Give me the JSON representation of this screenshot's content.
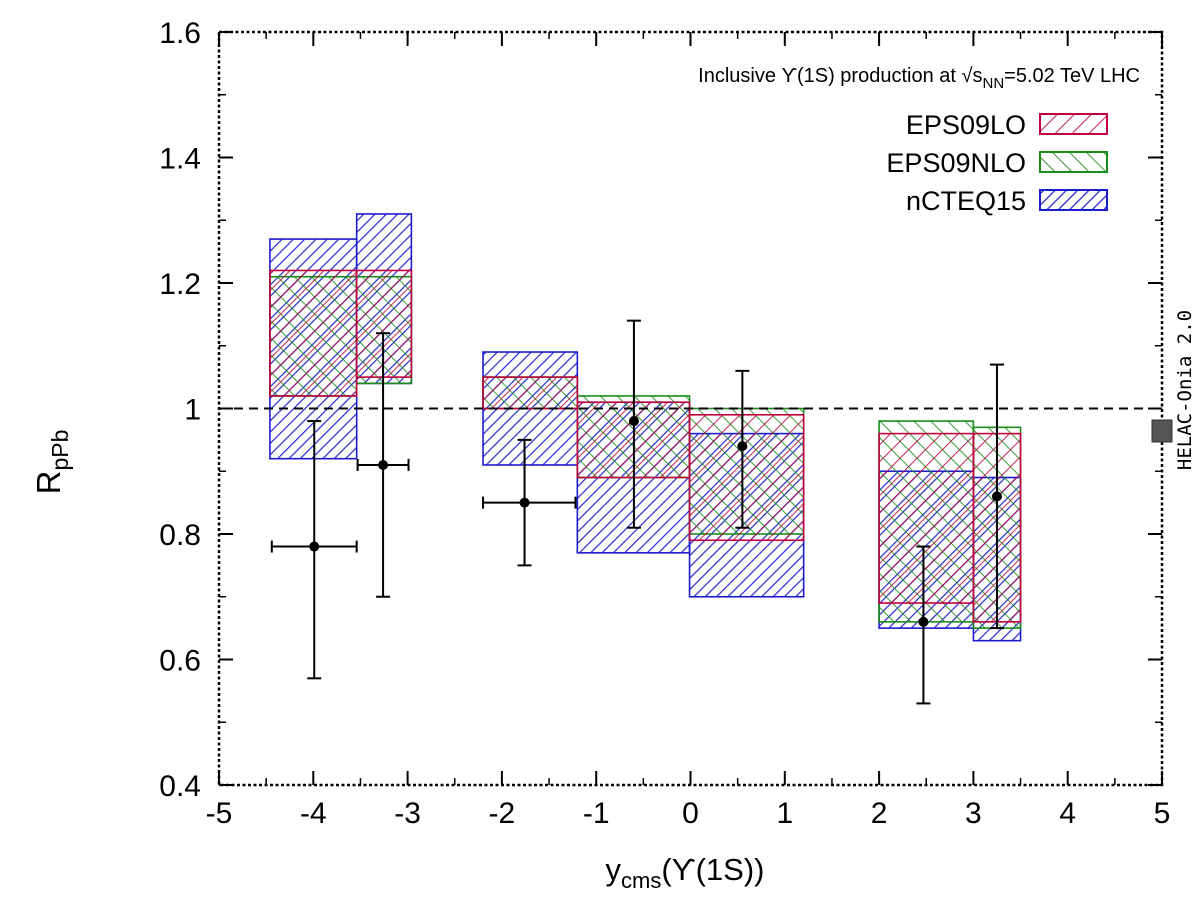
{
  "chart_data": {
    "type": "bar",
    "annotation": {
      "prefix": "Inclusive ϒ(1S) production at ",
      "sqrt": "√s",
      "sub": "NN",
      "suffix": "=5.02 TeV LHC"
    },
    "side_label": "HELAC-Onia 2.0",
    "xlabel": {
      "main": "y",
      "sub": "cms",
      "rest": "(ϒ(1S))"
    },
    "ylabel": {
      "main": "R",
      "sub": "pPb"
    },
    "xlim": [
      -5,
      5
    ],
    "ylim": [
      0.4,
      1.6
    ],
    "x_ticks": [
      "-5",
      "-4",
      "-3",
      "-2",
      "-1",
      "0",
      "1",
      "2",
      "3",
      "4",
      "5"
    ],
    "y_ticks": [
      "0.4",
      "0.6",
      "0.8",
      "1",
      "1.2",
      "1.4",
      "1.6"
    ],
    "reference_line": 1.0,
    "grid": false,
    "legend_position": "top-right",
    "series": [
      {
        "name": "EPS09LO",
        "color": "#c0003c",
        "pattern": "diag-down",
        "bands": [
          {
            "x0": -4.46,
            "x1": -3.54,
            "low": 1.02,
            "high": 1.22
          },
          {
            "x0": -3.54,
            "x1": -2.96,
            "low": 1.05,
            "high": 1.22
          },
          {
            "x0": -2.2,
            "x1": -1.2,
            "low": 1.0,
            "high": 1.05
          },
          {
            "x0": -1.2,
            "x1": -0.01,
            "low": 0.89,
            "high": 1.01
          },
          {
            "x0": -0.01,
            "x1": 1.2,
            "low": 0.79,
            "high": 0.99
          },
          {
            "x0": 2.0,
            "x1": 3.0,
            "low": 0.69,
            "high": 0.96
          },
          {
            "x0": 3.0,
            "x1": 3.5,
            "low": 0.66,
            "high": 0.96
          }
        ]
      },
      {
        "name": "EPS09NLO",
        "color": "#1a8c1a",
        "pattern": "diag-up",
        "bands": [
          {
            "x0": -4.46,
            "x1": -3.54,
            "low": 1.02,
            "high": 1.21
          },
          {
            "x0": -3.54,
            "x1": -2.96,
            "low": 1.04,
            "high": 1.21
          },
          {
            "x0": -2.2,
            "x1": -1.2,
            "low": 1.0,
            "high": 1.05
          },
          {
            "x0": -1.2,
            "x1": -0.01,
            "low": 0.89,
            "high": 1.02
          },
          {
            "x0": -0.01,
            "x1": 1.2,
            "low": 0.8,
            "high": 1.0
          },
          {
            "x0": 2.0,
            "x1": 3.0,
            "low": 0.66,
            "high": 0.98
          },
          {
            "x0": 3.0,
            "x1": 3.5,
            "low": 0.65,
            "high": 0.97
          }
        ]
      },
      {
        "name": "nCTEQ15",
        "color": "#1c1ccc",
        "pattern": "diag-down-dense",
        "bands": [
          {
            "x0": -4.46,
            "x1": -3.54,
            "low": 0.92,
            "high": 1.27
          },
          {
            "x0": -3.54,
            "x1": -2.96,
            "low": 1.04,
            "high": 1.31
          },
          {
            "x0": -2.2,
            "x1": -1.2,
            "low": 0.91,
            "high": 1.09
          },
          {
            "x0": -1.2,
            "x1": -0.01,
            "low": 0.77,
            "high": 1.01
          },
          {
            "x0": -0.01,
            "x1": 1.2,
            "low": 0.7,
            "high": 0.96
          },
          {
            "x0": 2.0,
            "x1": 3.0,
            "low": 0.65,
            "high": 0.9
          },
          {
            "x0": 3.0,
            "x1": 3.5,
            "low": 0.63,
            "high": 0.89
          }
        ]
      }
    ],
    "measurements": [
      {
        "x": -3.99,
        "xerr_low": 0.45,
        "xerr_high": 0.45,
        "y": 0.78,
        "yerr_low": 0.21,
        "yerr_high": 0.2
      },
      {
        "x": -3.26,
        "xerr_low": 0.27,
        "xerr_high": 0.27,
        "y": 0.91,
        "yerr_low": 0.21,
        "yerr_high": 0.21
      },
      {
        "x": -1.76,
        "xerr_low": 0.44,
        "xerr_high": 0.54,
        "y": 0.85,
        "yerr_low": 0.1,
        "yerr_high": 0.1
      },
      {
        "x": -0.6,
        "xerr_low": 0,
        "xerr_high": 0,
        "y": 0.98,
        "yerr_low": 0.17,
        "yerr_high": 0.16
      },
      {
        "x": 0.55,
        "xerr_low": 0,
        "xerr_high": 0,
        "y": 0.94,
        "yerr_low": 0.13,
        "yerr_high": 0.12
      },
      {
        "x": 2.47,
        "xerr_low": 0,
        "xerr_high": 0,
        "y": 0.66,
        "yerr_low": 0.13,
        "yerr_high": 0.12
      },
      {
        "x": 3.25,
        "xerr_low": 0,
        "xerr_high": 0,
        "y": 0.86,
        "yerr_low": 0.21,
        "yerr_high": 0.21
      }
    ]
  }
}
